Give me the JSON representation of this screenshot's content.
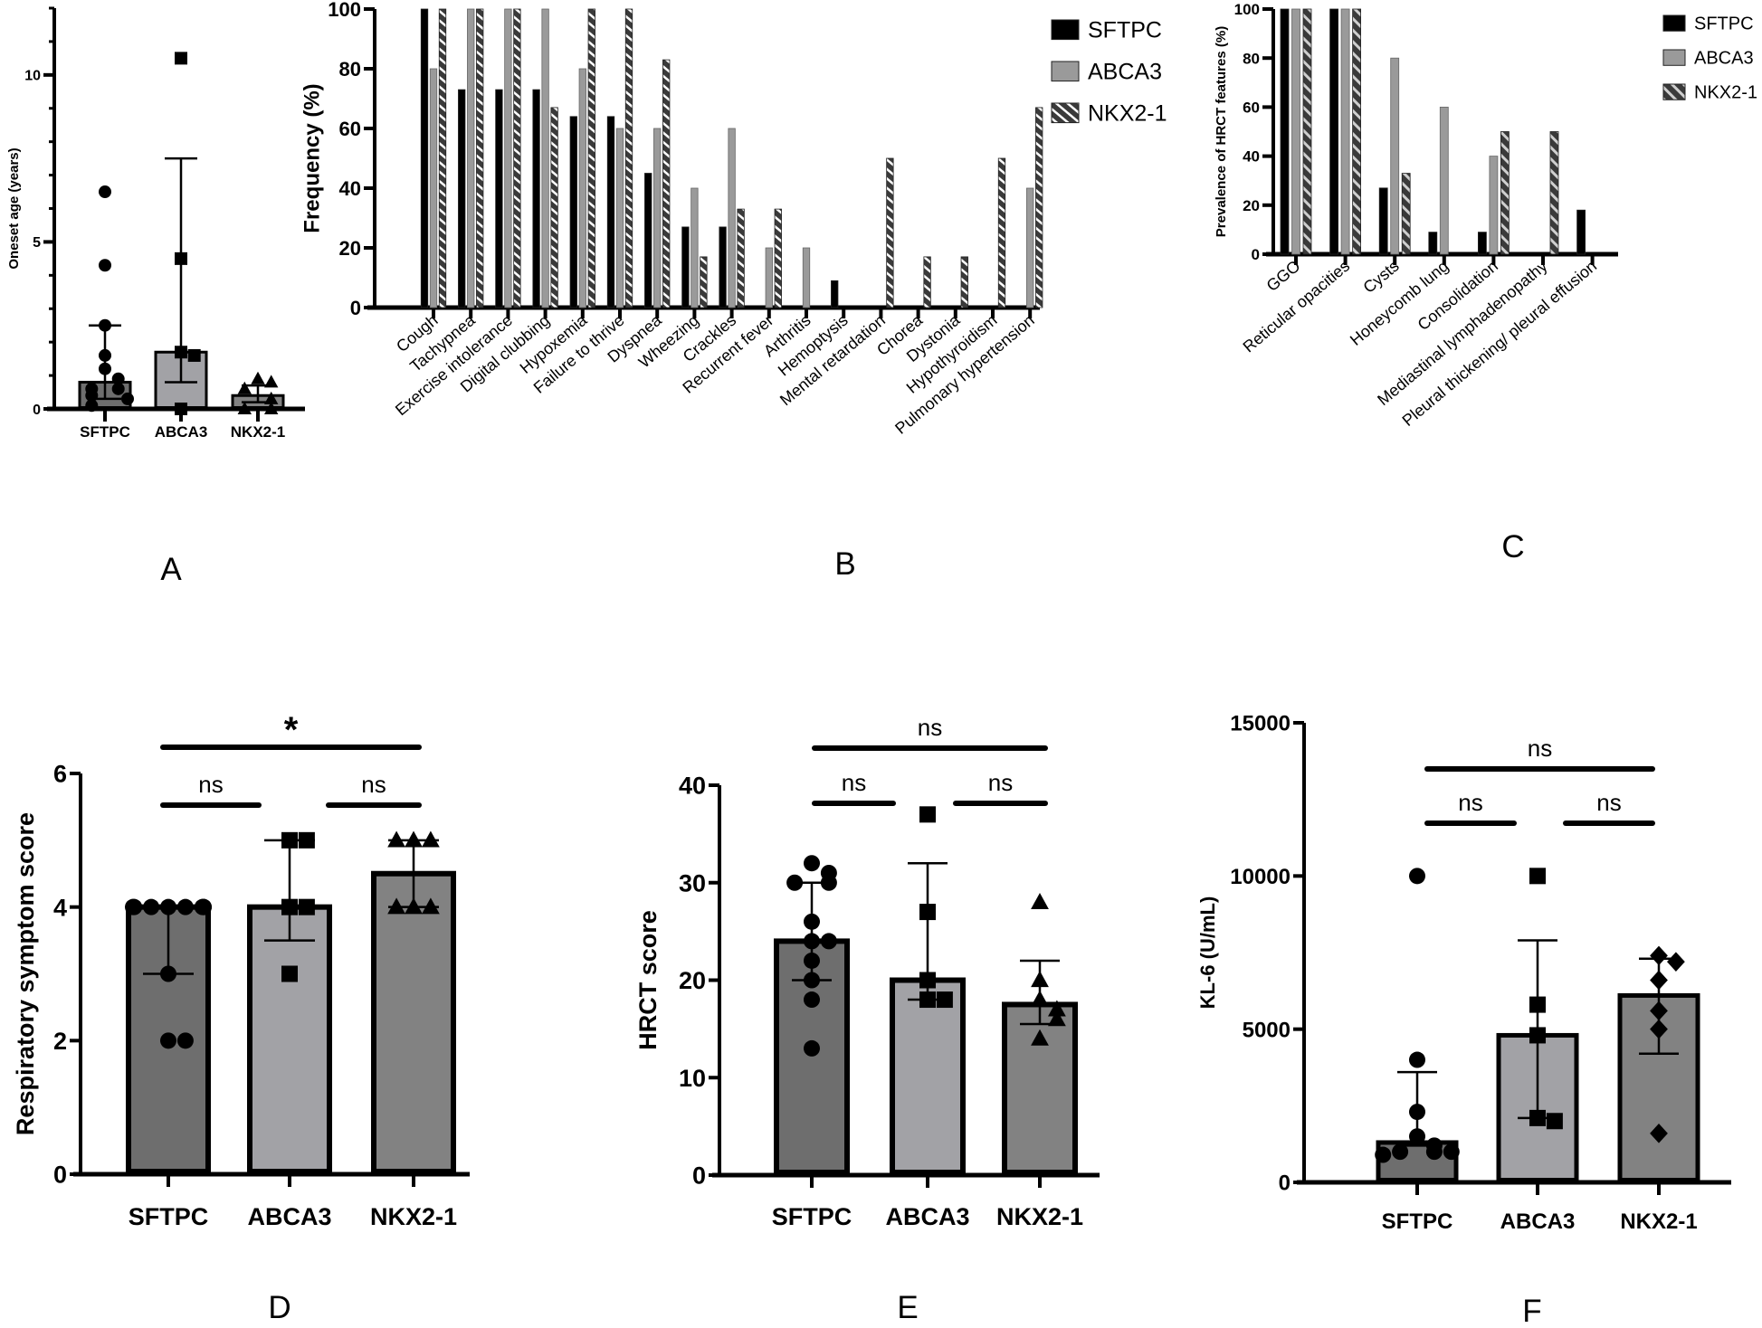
{
  "colors": {
    "sftpc_bar": "#6e6e6e",
    "abca3_bar": "#a2a2a6",
    "nkx21_bar": "#828282",
    "sftpc_series": "#000000",
    "abca3_series": "#9a9a9a",
    "nkx21_series": "#3a3a3a",
    "hatch_stripe": "#ffffff"
  },
  "chart_data": [
    {
      "panel_label": "A",
      "type": "bar",
      "categories": [
        "SFTPC",
        "ABCA3",
        "NKX2-1"
      ],
      "ylabel": "Oneset age (years)",
      "ylim": [
        0,
        12
      ],
      "yticks": [
        0,
        5,
        10
      ],
      "yminor_step": 1,
      "bars": [
        0.8,
        1.7,
        0.4
      ],
      "error": [
        [
          0.3,
          2.5
        ],
        [
          0.8,
          7.5
        ],
        [
          0.2,
          0.7
        ]
      ],
      "markers": [
        "circle",
        "square",
        "triangle"
      ],
      "points": [
        [
          6.5,
          4.3,
          2.5,
          1.6,
          1.2,
          0.9,
          0.6,
          0.6,
          0.4,
          0.3,
          0.1
        ],
        [
          10.5,
          4.5,
          1.7,
          1.6,
          0
        ],
        [
          0.9,
          0.8,
          0.6,
          0.3,
          0,
          0
        ]
      ]
    },
    {
      "panel_label": "B",
      "type": "bar",
      "categories": [
        "Cough",
        "Tachypnea",
        "Exercise intolerance",
        "Digital clubbing",
        "Hypoxemia",
        "Failure to thrive",
        "Dyspnea",
        "Wheezing",
        "Crackles",
        "Recurrent fever",
        "Arthritis",
        "Hemoptysis",
        "Mental retardation",
        "Chorea",
        "Dystonia",
        "Hypothyroidism",
        "Pulmonary hypertension"
      ],
      "ylabel": "Frequency (%)",
      "ylim": [
        0,
        100
      ],
      "yticks": [
        0,
        20,
        40,
        60,
        80,
        100
      ],
      "legend": "top-right",
      "series": [
        {
          "name": "SFTPC",
          "values": [
            100,
            73,
            73,
            73,
            64,
            64,
            45,
            27,
            27,
            0,
            0,
            9,
            0,
            0,
            0,
            0,
            0
          ]
        },
        {
          "name": "ABCA3",
          "values": [
            80,
            100,
            100,
            100,
            80,
            60,
            60,
            40,
            60,
            20,
            20,
            0,
            0,
            0,
            0,
            0,
            40
          ]
        },
        {
          "name": "NKX2-1",
          "values": [
            100,
            100,
            100,
            67,
            100,
            100,
            83,
            17,
            33,
            33,
            0,
            0,
            50,
            17,
            17,
            50,
            67
          ]
        }
      ]
    },
    {
      "panel_label": "C",
      "type": "bar",
      "categories": [
        "GGO",
        "Reticular opacities",
        "Cysts",
        "Honeycomb lung",
        "Consolidation",
        "Mediastinal lymphadenopathy",
        "Pleural thickening/ pleural effusion"
      ],
      "ylabel": "Prevalence of HRCT features (%)",
      "ylim": [
        0,
        100
      ],
      "yticks": [
        0,
        20,
        40,
        60,
        80,
        100
      ],
      "legend": "top-right",
      "series": [
        {
          "name": "SFTPC",
          "values": [
            100,
            100,
            27,
            9,
            9,
            0,
            18
          ]
        },
        {
          "name": "ABCA3",
          "values": [
            100,
            100,
            80,
            60,
            40,
            0,
            0
          ]
        },
        {
          "name": "NKX2-1",
          "values": [
            100,
            100,
            33,
            0,
            50,
            50,
            0
          ]
        }
      ]
    },
    {
      "panel_label": "D",
      "type": "bar",
      "categories": [
        "SFTPC",
        "ABCA3",
        "NKX2-1"
      ],
      "ylabel": "Respiratory symptom score",
      "ylim": [
        0,
        6
      ],
      "yticks": [
        0,
        2,
        4,
        6
      ],
      "bars": [
        4,
        4,
        4.5
      ],
      "error": [
        [
          3,
          4
        ],
        [
          3.5,
          5
        ],
        [
          4,
          5
        ]
      ],
      "markers": [
        "circle",
        "square",
        "triangle"
      ],
      "points": [
        [
          4,
          4,
          4,
          4,
          4,
          4,
          4,
          4,
          3,
          2,
          2
        ],
        [
          5,
          5,
          4,
          4,
          3
        ],
        [
          5,
          5,
          5,
          4,
          4,
          4
        ]
      ],
      "significance": [
        {
          "from": 0,
          "to": 2,
          "label": "*"
        },
        {
          "from": 0,
          "to": 1,
          "label": "ns"
        },
        {
          "from": 1,
          "to": 2,
          "label": "ns"
        }
      ]
    },
    {
      "panel_label": "E",
      "type": "bar",
      "categories": [
        "SFTPC",
        "ABCA3",
        "NKX2-1"
      ],
      "ylabel": "HRCT score",
      "ylim": [
        0,
        40
      ],
      "yticks": [
        0,
        10,
        20,
        30,
        40
      ],
      "bars": [
        24,
        20,
        17.5
      ],
      "error": [
        [
          20,
          30
        ],
        [
          18,
          32
        ],
        [
          15.5,
          22
        ]
      ],
      "markers": [
        "circle",
        "square",
        "triangle"
      ],
      "points": [
        [
          32,
          31,
          30,
          30,
          26,
          24,
          24,
          22,
          20,
          18,
          13
        ],
        [
          37,
          27,
          20,
          18,
          18
        ],
        [
          28,
          20,
          18,
          17,
          16,
          14
        ]
      ],
      "significance": [
        {
          "from": 0,
          "to": 2,
          "label": "ns"
        },
        {
          "from": 0,
          "to": 1,
          "label": "ns"
        },
        {
          "from": 1,
          "to": 2,
          "label": "ns"
        }
      ]
    },
    {
      "panel_label": "F",
      "type": "bar",
      "categories": [
        "SFTPC",
        "ABCA3",
        "NKX2-1"
      ],
      "ylabel": "KL-6 (U/mL)",
      "ylim": [
        0,
        15000
      ],
      "yticks": [
        0,
        5000,
        10000,
        15000
      ],
      "bars": [
        1300,
        4800,
        6100
      ],
      "error": [
        [
          1200,
          3600
        ],
        [
          2100,
          7900
        ],
        [
          4200,
          7300
        ]
      ],
      "markers": [
        "circle",
        "square",
        "diamond"
      ],
      "points": [
        [
          10000,
          4000,
          2300,
          1500,
          1200,
          1000,
          1000,
          1000,
          900
        ],
        [
          10000,
          5800,
          4800,
          2100,
          2000
        ],
        [
          7400,
          7200,
          6600,
          5600,
          5000,
          1600
        ]
      ],
      "significance": [
        {
          "from": 0,
          "to": 2,
          "label": "ns"
        },
        {
          "from": 0,
          "to": 1,
          "label": "ns"
        },
        {
          "from": 1,
          "to": 2,
          "label": "ns"
        }
      ]
    }
  ]
}
